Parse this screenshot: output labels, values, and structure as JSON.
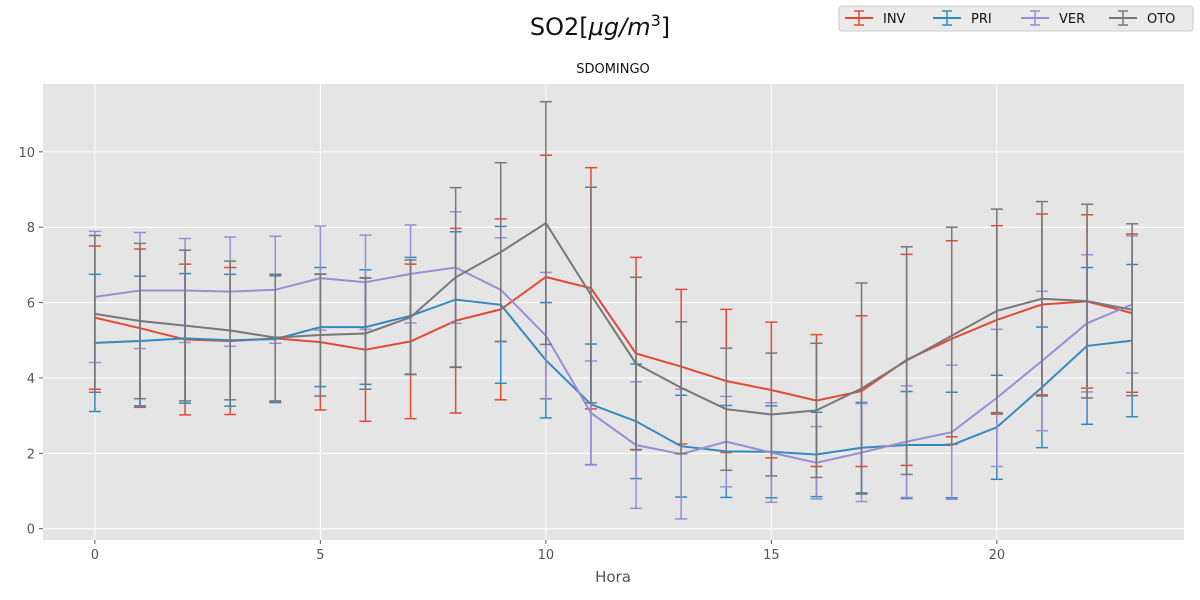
{
  "chart_data": {
    "type": "line",
    "title": "SO2[μg/m³]",
    "title_parts": {
      "base": "SO2[",
      "mu": "μg/m",
      "exp": "3",
      "close": "]"
    },
    "subtitle": "SDOMINGO",
    "xlabel": "Hora",
    "ylabel": "",
    "xlim": [
      -1.15,
      24.15
    ],
    "ylim": [
      -0.3,
      11.8
    ],
    "xticks": [
      0,
      5,
      10,
      15,
      20
    ],
    "yticks": [
      0,
      2,
      4,
      6,
      8,
      10
    ],
    "grid": true,
    "legend": "top-right",
    "x": [
      0,
      1,
      2,
      3,
      4,
      5,
      6,
      7,
      8,
      9,
      10,
      11,
      12,
      13,
      14,
      15,
      16,
      17,
      18,
      19,
      20,
      21,
      22,
      23
    ],
    "series": [
      {
        "name": "INV",
        "color": "#E24A33",
        "values": [
          5.6,
          5.32,
          5.02,
          4.98,
          5.05,
          4.95,
          4.75,
          4.97,
          5.52,
          5.82,
          6.68,
          6.38,
          4.65,
          4.3,
          3.92,
          3.68,
          3.4,
          3.65,
          4.48,
          5.04,
          5.54,
          5.95,
          6.03,
          5.72
        ],
        "err": [
          1.9,
          2.1,
          2.0,
          1.95,
          1.7,
          1.8,
          1.9,
          2.05,
          2.45,
          2.4,
          3.23,
          3.2,
          2.55,
          2.05,
          1.9,
          1.8,
          1.75,
          2.0,
          2.8,
          2.6,
          2.5,
          2.4,
          2.3,
          2.1
        ]
      },
      {
        "name": "PRI",
        "color": "#348ABD",
        "values": [
          4.93,
          4.98,
          5.05,
          5.0,
          5.03,
          5.35,
          5.35,
          5.65,
          6.08,
          5.94,
          4.47,
          3.3,
          2.85,
          2.19,
          2.05,
          2.04,
          1.97,
          2.15,
          2.22,
          2.22,
          2.69,
          3.75,
          4.85,
          4.99
        ],
        "err": [
          1.82,
          1.72,
          1.72,
          1.75,
          1.68,
          1.58,
          1.52,
          1.55,
          1.8,
          2.08,
          1.53,
          1.6,
          1.52,
          1.35,
          1.22,
          1.22,
          1.12,
          1.2,
          1.42,
          1.4,
          1.38,
          1.6,
          2.08,
          2.02
        ]
      },
      {
        "name": "VER",
        "color": "#988ED5",
        "values": [
          6.15,
          6.32,
          6.32,
          6.29,
          6.34,
          6.65,
          6.54,
          6.76,
          6.93,
          6.34,
          5.12,
          3.07,
          2.22,
          1.98,
          2.31,
          2.02,
          1.75,
          2.02,
          2.31,
          2.56,
          3.47,
          4.45,
          5.45,
          5.95
        ],
        "err": [
          1.74,
          1.54,
          1.38,
          1.45,
          1.42,
          1.38,
          1.25,
          1.3,
          1.48,
          1.38,
          1.68,
          1.38,
          1.68,
          1.72,
          1.2,
          1.32,
          0.96,
          1.3,
          1.48,
          1.78,
          1.82,
          1.85,
          1.82,
          1.82
        ]
      },
      {
        "name": "OTO",
        "color": "#777777",
        "values": [
          5.7,
          5.51,
          5.39,
          5.26,
          5.07,
          5.14,
          5.18,
          5.61,
          6.67,
          7.34,
          8.11,
          6.2,
          4.38,
          3.74,
          3.17,
          3.03,
          3.14,
          3.72,
          4.46,
          5.12,
          5.78,
          6.1,
          6.04,
          5.81
        ],
        "err": [
          2.08,
          2.06,
          2.0,
          1.84,
          1.68,
          1.62,
          1.48,
          1.52,
          2.38,
          2.37,
          3.22,
          2.86,
          2.29,
          1.75,
          1.62,
          1.63,
          1.78,
          2.8,
          3.02,
          2.88,
          2.7,
          2.58,
          2.57,
          2.28
        ]
      }
    ]
  }
}
